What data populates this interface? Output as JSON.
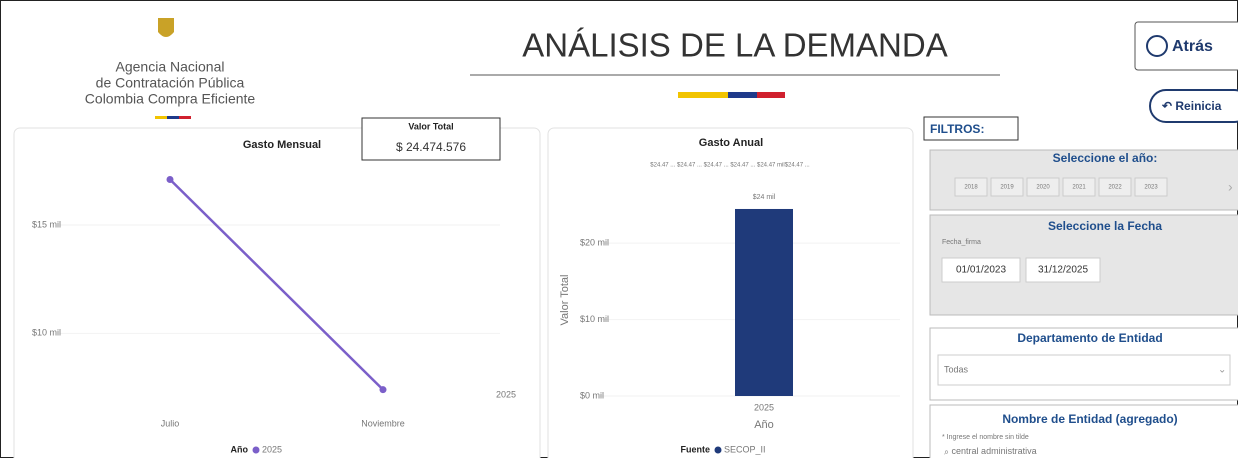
{
  "header": {
    "agency": [
      "Agencia Nacional",
      "de Contratación Pública",
      "Colombia Compra Eficiente"
    ],
    "title": "ANÁLISIS DE LA DEMANDA",
    "back_button": "Atrás",
    "reset_button": "Reinicia"
  },
  "kpi": {
    "label": "Valor Total",
    "value": "$ 24.474.576"
  },
  "chart_data": [
    {
      "type": "line",
      "title": "Gasto Mensual",
      "categories": [
        "Julio",
        "Noviembre"
      ],
      "series": [
        {
          "name": "2025",
          "color": "#7b5fc9",
          "values": [
            17.1,
            7.4
          ]
        }
      ],
      "legend_title": "Año",
      "annotation": "2025",
      "ylim": [
        6,
        18
      ],
      "yticks": [
        {
          "value": 10,
          "label": "$10 mil"
        },
        {
          "value": 15,
          "label": "$15 mil"
        }
      ]
    },
    {
      "type": "bar",
      "title": "Gasto Anual",
      "categories": [
        "2025"
      ],
      "series": [
        {
          "name": "SECOP_II",
          "color": "#1f3a7a",
          "values": [
            24.47
          ],
          "value_labels": [
            "$24 mil"
          ]
        }
      ],
      "legend_title": "Fuente",
      "y_label": "Valor Total",
      "x_label": "Año",
      "annotation": "$24.47 ... $24.47 ... $24.47 ... $24.47 ... $24.47 mil$24.47 ...",
      "ylim": [
        0,
        28
      ],
      "yticks": [
        {
          "value": 0,
          "label": "$0 mil"
        },
        {
          "value": 10,
          "label": "$10 mil"
        },
        {
          "value": 20,
          "label": "$20 mil"
        }
      ]
    }
  ],
  "filters": {
    "title": "FILTROS:",
    "year": {
      "title": "Seleccione el año:",
      "options": [
        "2018",
        "2019",
        "2020",
        "2021",
        "2022",
        "2023"
      ]
    },
    "date": {
      "title": "Seleccione la Fecha",
      "field": "Fecha_firma",
      "start": "01/01/2023",
      "end": "31/12/2025"
    },
    "department": {
      "title": "Departamento de Entidad",
      "value": "Todas"
    },
    "entity": {
      "title": "Nombre de Entidad (agregado)",
      "hint": "* Ingrese el nombre sin tilde",
      "value": "central administrativa"
    }
  }
}
